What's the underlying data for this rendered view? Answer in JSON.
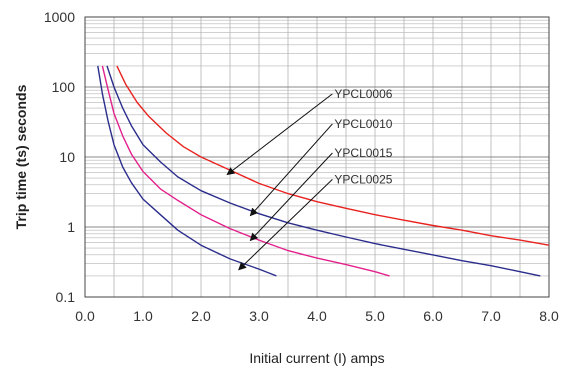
{
  "chart_data": {
    "type": "line",
    "title": "",
    "xlabel": "Initial current (I) amps",
    "ylabel": "Trip time (ts) seconds",
    "x_scale": "linear",
    "y_scale": "log",
    "xlim": [
      0,
      8
    ],
    "ylim": [
      0.1,
      1000
    ],
    "x_ticks": [
      "0.0",
      "1.0",
      "2.0",
      "3.0",
      "4.0",
      "5.0",
      "6.0",
      "7.0",
      "8.0"
    ],
    "y_ticks": [
      "0.1",
      "1",
      "10",
      "100",
      "1000"
    ],
    "grid": true,
    "series": [
      {
        "name": "YPCL0006",
        "color": "#e8231f",
        "x": [
          0.55,
          0.7,
          0.9,
          1.1,
          1.4,
          1.7,
          2.0,
          2.5,
          3.0,
          3.5,
          4.0,
          4.5,
          5.0,
          5.5,
          6.0,
          6.5,
          7.0,
          7.5,
          8.0
        ],
        "y": [
          200,
          110,
          60,
          38,
          22,
          14,
          10,
          6.5,
          4.2,
          3.0,
          2.3,
          1.85,
          1.5,
          1.25,
          1.05,
          0.9,
          0.75,
          0.65,
          0.55
        ]
      },
      {
        "name": "YPCL0010",
        "color": "#2b2d8c",
        "x": [
          0.38,
          0.5,
          0.65,
          0.8,
          1.0,
          1.3,
          1.6,
          2.0,
          2.5,
          3.0,
          3.5,
          4.0,
          4.5,
          5.0,
          5.5,
          6.0,
          6.5,
          7.0,
          7.5,
          7.85
        ],
        "y": [
          200,
          100,
          50,
          28,
          15,
          8.5,
          5.2,
          3.3,
          2.2,
          1.55,
          1.15,
          0.9,
          0.72,
          0.58,
          0.48,
          0.4,
          0.33,
          0.28,
          0.23,
          0.2
        ]
      },
      {
        "name": "YPCL0015",
        "color": "#e3218d",
        "x": [
          0.3,
          0.4,
          0.5,
          0.65,
          0.8,
          1.0,
          1.3,
          1.6,
          2.0,
          2.5,
          3.0,
          3.5,
          4.0,
          4.5,
          5.0,
          5.25
        ],
        "y": [
          200,
          90,
          42,
          20,
          11,
          6.2,
          3.5,
          2.4,
          1.5,
          0.95,
          0.65,
          0.46,
          0.36,
          0.29,
          0.23,
          0.2
        ]
      },
      {
        "name": "YPCL0025",
        "color": "#2b2d8c",
        "x": [
          0.22,
          0.3,
          0.4,
          0.5,
          0.65,
          0.8,
          1.0,
          1.3,
          1.6,
          2.0,
          2.5,
          3.0,
          3.3
        ],
        "y": [
          200,
          80,
          32,
          15,
          7.2,
          4.3,
          2.5,
          1.5,
          0.9,
          0.55,
          0.35,
          0.25,
          0.2
        ]
      }
    ],
    "callouts": [
      {
        "label": "YPCL0006",
        "text_x": 4.3,
        "text_y": 70,
        "arrow_x": 2.45,
        "arrow_y": 5.6
      },
      {
        "label": "YPCL0010",
        "text_x": 4.3,
        "text_y": 26,
        "arrow_x": 2.85,
        "arrow_y": 1.45
      },
      {
        "label": "YPCL0015",
        "text_x": 4.3,
        "text_y": 10,
        "arrow_x": 2.85,
        "arrow_y": 0.64
      },
      {
        "label": "YPCL0025",
        "text_x": 4.3,
        "text_y": 4.2,
        "arrow_x": 2.65,
        "arrow_y": 0.245
      }
    ]
  }
}
